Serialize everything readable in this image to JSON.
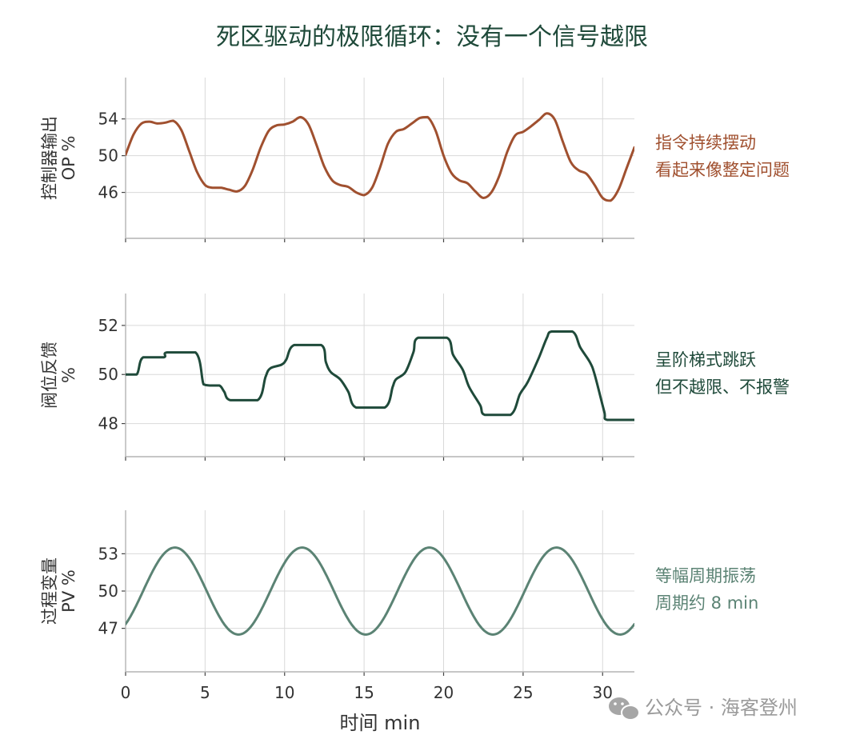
{
  "title": "死区驱动的极限循环：没有一个信号越限",
  "watermark": "公众号 · 海客登州",
  "chart_data": [
    {
      "type": "line",
      "name": "op",
      "ylabel_line1": "控制器输出",
      "ylabel_line2": "OP  %",
      "color": "#a0502f",
      "ylim": [
        41,
        58.5
      ],
      "yticks": [
        46,
        50,
        54
      ],
      "xlim": [
        0,
        32
      ],
      "annotation": [
        "指令持续摆动",
        "看起来像整定问题"
      ],
      "x": [
        0,
        0.5,
        1.0,
        1.5,
        2.0,
        2.5,
        3.0,
        3.5,
        4.0,
        4.5,
        5.0,
        5.5,
        6.0,
        6.5,
        7.0,
        7.5,
        8.0,
        8.5,
        9.0,
        9.5,
        10.0,
        10.5,
        11.0,
        11.5,
        12.0,
        12.5,
        13.0,
        13.5,
        14.0,
        14.5,
        15.0,
        15.5,
        16.0,
        16.5,
        17.0,
        17.5,
        18.0,
        18.5,
        19.0,
        19.5,
        20.0,
        20.5,
        21.0,
        21.5,
        22.0,
        22.5,
        23.0,
        23.5,
        24.0,
        24.5,
        25.0,
        25.5,
        26.0,
        26.5,
        27.0,
        27.5,
        28.0,
        28.5,
        29.0,
        29.5,
        30.0,
        30.5,
        31.0,
        31.5,
        32.0
      ],
      "values": [
        50.1,
        52.3,
        53.5,
        53.7,
        53.5,
        53.6,
        53.8,
        52.8,
        50.5,
        48.2,
        46.8,
        46.5,
        46.5,
        46.3,
        46.1,
        46.7,
        48.5,
        50.9,
        52.7,
        53.3,
        53.4,
        53.7,
        54.2,
        53.4,
        51.2,
        48.8,
        47.3,
        46.8,
        46.6,
        46.0,
        45.7,
        46.5,
        48.7,
        51.3,
        52.6,
        52.9,
        53.5,
        54.1,
        54.2,
        52.7,
        50.0,
        48.1,
        47.3,
        47.0,
        46.1,
        45.4,
        46.0,
        47.8,
        50.4,
        52.2,
        52.6,
        53.2,
        53.9,
        54.6,
        53.9,
        51.5,
        49.3,
        48.4,
        48.0,
        46.8,
        45.4,
        45.1,
        46.3,
        48.6,
        50.9
      ]
    },
    {
      "type": "line",
      "name": "valve",
      "ylabel_line1": "阀位反馈",
      "ylabel_line2": "%",
      "color": "#1f4a3a",
      "ylim": [
        46.65,
        53.3
      ],
      "yticks": [
        48,
        50,
        52
      ],
      "xlim": [
        0,
        32
      ],
      "annotation": [
        "呈阶梯式跳跃",
        "但不越限、不报警"
      ],
      "x": [
        0,
        0.7,
        1.1,
        2.4,
        2.6,
        4.4,
        4.9,
        5.3,
        5.9,
        6.2,
        6.6,
        8.3,
        8.8,
        9.1,
        9.8,
        10.1,
        10.6,
        12.3,
        12.6,
        12.9,
        13.5,
        14.0,
        14.5,
        16.3,
        16.8,
        17.0,
        17.6,
        18.1,
        18.4,
        20.2,
        20.6,
        21.2,
        21.6,
        22.3,
        22.6,
        24.2,
        24.8,
        25.3,
        26.0,
        26.5,
        26.8,
        28.1,
        28.6,
        29.2,
        29.5,
        30.1,
        30.3,
        32.0
      ],
      "values": [
        50.0,
        50.0,
        50.7,
        50.7,
        50.9,
        50.9,
        49.6,
        49.55,
        49.55,
        49.3,
        48.95,
        48.95,
        49.9,
        50.25,
        50.4,
        50.6,
        51.2,
        51.2,
        50.5,
        50.1,
        49.8,
        49.3,
        48.65,
        48.65,
        49.5,
        49.8,
        50.1,
        50.9,
        51.5,
        51.5,
        50.8,
        50.2,
        49.5,
        48.75,
        48.35,
        48.35,
        49.2,
        49.7,
        50.7,
        51.5,
        51.75,
        51.75,
        51.1,
        50.5,
        50.0,
        48.5,
        48.15,
        48.15
      ]
    },
    {
      "type": "line",
      "name": "pv",
      "ylabel_line1": "过程变量",
      "ylabel_line2": "PV  %",
      "color": "#5b8374",
      "ylim": [
        43.5,
        56.5
      ],
      "yticks": [
        47,
        50,
        53
      ],
      "xlim": [
        0,
        32
      ],
      "annotation": [
        "等幅周期振荡",
        "周期约 8 min"
      ],
      "amplitude": 3.5,
      "center": 50,
      "period_min": 8,
      "peak_at_min": 3.1
    }
  ],
  "xaxis": {
    "label": "时间   min",
    "ticks": [
      0,
      5,
      10,
      15,
      20,
      25,
      30
    ]
  }
}
